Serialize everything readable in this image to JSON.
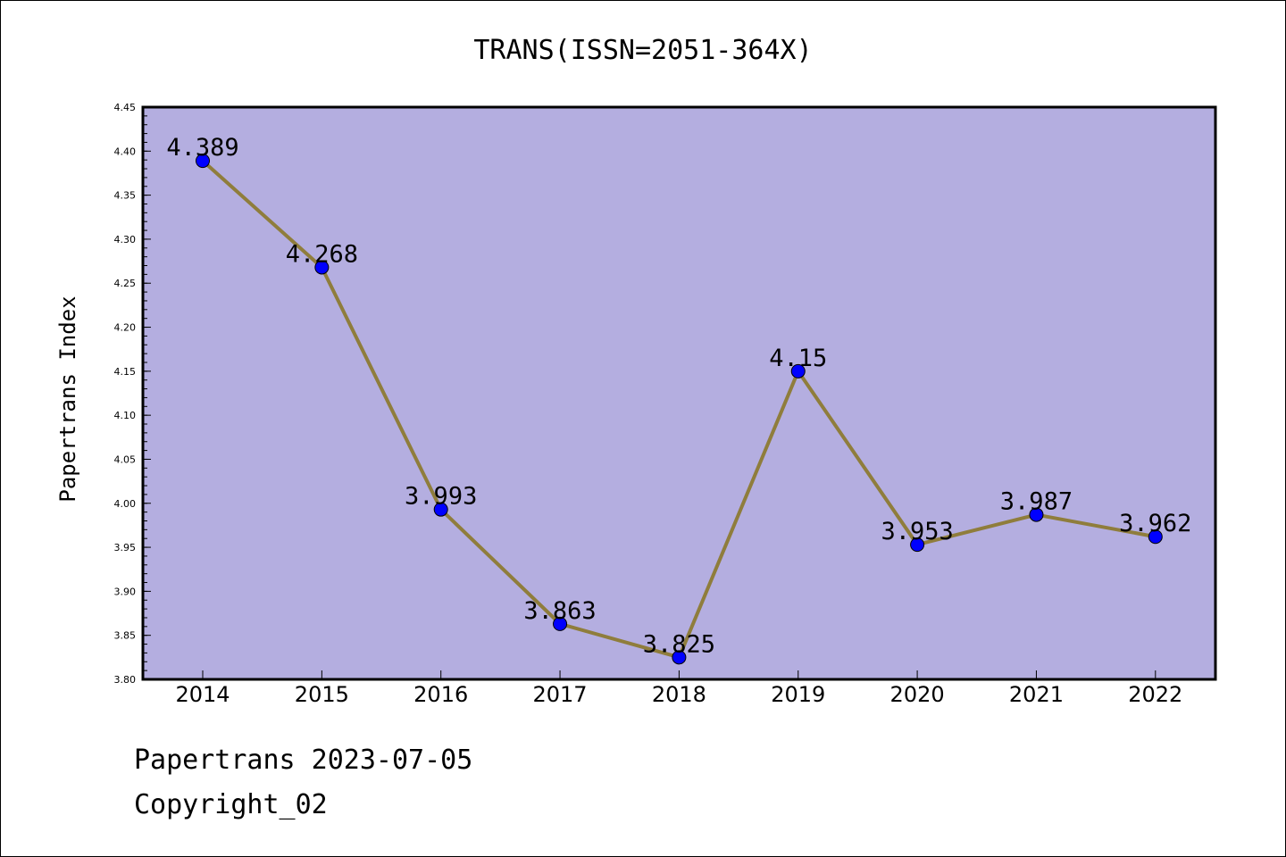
{
  "chart_data": {
    "type": "line",
    "title": "TRANS(ISSN=2051-364X)",
    "xlabel": "",
    "ylabel": "Papertrans Index",
    "categories": [
      "2014",
      "2015",
      "2016",
      "2017",
      "2018",
      "2019",
      "2020",
      "2021",
      "2022"
    ],
    "series": [
      {
        "values": [
          4.389,
          4.268,
          3.993,
          3.863,
          3.825,
          4.15,
          3.953,
          3.987,
          3.962
        ],
        "data_labels": [
          "4.389",
          "4.268",
          "3.993",
          "3.863",
          "3.825",
          "4.15",
          "3.953",
          "3.987",
          "3.962"
        ],
        "line_color": "#8f7d3c",
        "marker_color": "#0000ff"
      }
    ],
    "ylim": [
      3.8,
      4.45
    ],
    "y_ticks": [
      "3.80",
      "3.85",
      "3.90",
      "3.95",
      "4.00",
      "4.05",
      "4.10",
      "4.15",
      "4.20",
      "4.25",
      "4.30",
      "4.35",
      "4.40",
      "4.45"
    ],
    "y_minor_step": 0.01,
    "grid": false,
    "plot_background": "#b4aee0"
  },
  "footer": {
    "source": "Papertrans 2023-07-05",
    "copyright": "Copyright_02"
  }
}
